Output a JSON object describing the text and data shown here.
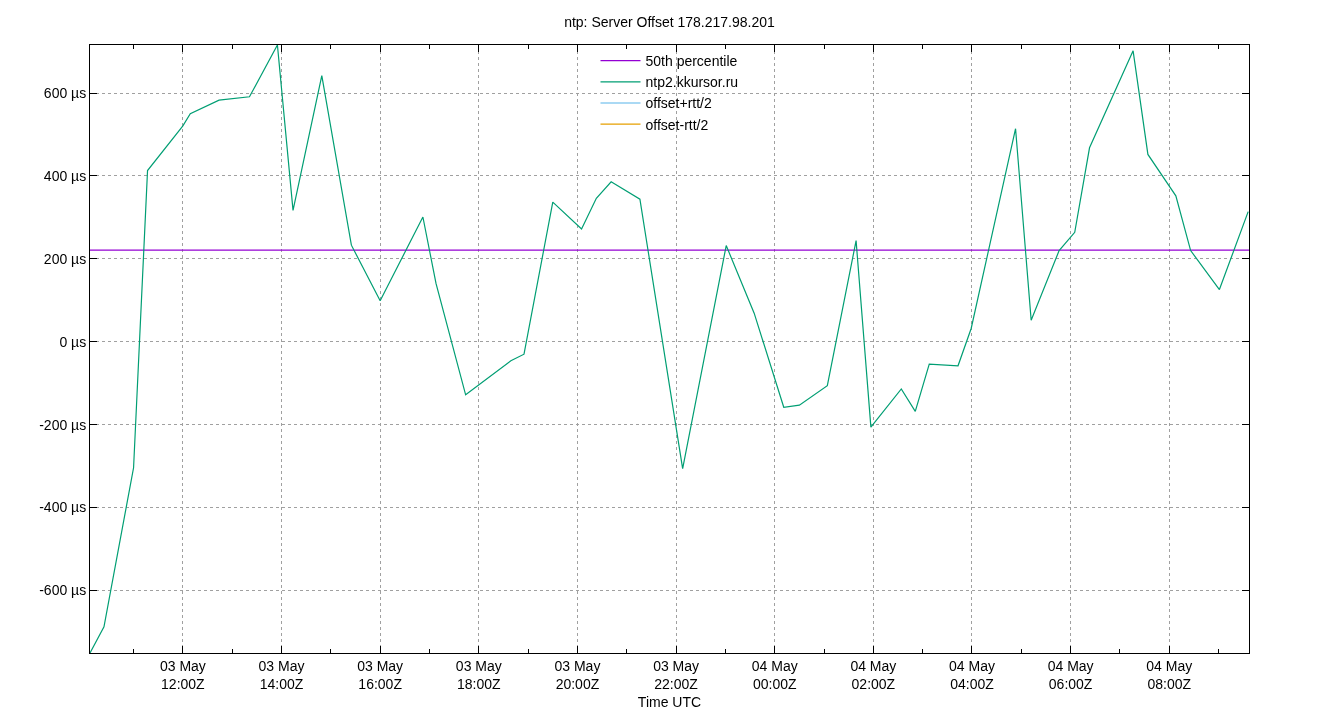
{
  "chart_data": {
    "type": "line",
    "title": "ntp: Server Offset 178.217.98.201",
    "xlabel": "Time UTC",
    "x": [
      "--05-03T10:07",
      "--05-03T10:24",
      "--05-03T11:00",
      "--05-03T11:17",
      "--05-03T12:00",
      "--05-03T12:09",
      "--05-03T12:44",
      "--05-03T13:21",
      "--05-03T13:55",
      "--05-03T14:14",
      "--05-03T14:49",
      "--05-03T15:25",
      "--05-03T16:00",
      "--05-03T16:52",
      "--05-03T17:08",
      "--05-03T17:44",
      "--05-03T18:39",
      "--05-03T18:55",
      "--05-03T19:30",
      "--05-03T20:05",
      "--05-03T20:23",
      "--05-03T20:41",
      "--05-03T21:16",
      "--05-03T22:08",
      "--05-03T23:01",
      "--05-03T23:35",
      "--05-04T00:11",
      "--05-04T00:30",
      "--05-04T01:04",
      "--05-04T01:39",
      "--05-04T01:57",
      "--05-04T02:34",
      "--05-04T02:51",
      "--05-04T03:08",
      "--05-04T03:43",
      "--05-04T03:59",
      "--05-04T04:53",
      "--05-04T05:12",
      "--05-04T05:46",
      "--05-04T06:05",
      "--05-04T06:23",
      "--05-04T07:16",
      "--05-04T07:34",
      "--05-04T08:08",
      "--05-04T08:26",
      "--05-04T09:01",
      "--05-04T09:36"
    ],
    "series": [
      {
        "name": "50th percentile",
        "color": "#9400d3",
        "x": [
          "--05-03T10:07",
          "--05-04T09:37"
        ],
        "values": [
          221,
          221
        ]
      },
      {
        "name": "ntp2.kkursor.ru",
        "color": "#009e73",
        "values": [
          -751,
          -688,
          -304,
          413,
          521,
          550,
          583,
          591,
          716,
          317,
          642,
          233,
          99,
          301,
          140,
          -128,
          -46,
          -30,
          337,
          272,
          346,
          386,
          344,
          -306,
          232,
          69,
          -158,
          -153,
          -106,
          244,
          -206,
          -114,
          -168,
          -54,
          -58,
          32,
          514,
          52,
          220,
          264,
          468,
          702,
          452,
          352,
          220,
          126,
          314
        ]
      },
      {
        "name": "offset+rtt/2",
        "color": "#56b4e9",
        "values": [
          null,
          null,
          null,
          null,
          null,
          null,
          null,
          null,
          null,
          null,
          null,
          null,
          null,
          null,
          null,
          null,
          null,
          null,
          null,
          null,
          null,
          null,
          null,
          null,
          null,
          null,
          null,
          null,
          null,
          null,
          null,
          null,
          null,
          null,
          null,
          null,
          null,
          null,
          null,
          null,
          null,
          null,
          null,
          null,
          null,
          null,
          null
        ]
      },
      {
        "name": "offset-rtt/2",
        "color": "#e69f00",
        "values": [
          null,
          null,
          null,
          null,
          null,
          null,
          null,
          null,
          null,
          null,
          null,
          null,
          null,
          null,
          null,
          null,
          null,
          null,
          null,
          null,
          null,
          null,
          null,
          null,
          null,
          null,
          null,
          null,
          null,
          null,
          null,
          null,
          null,
          null,
          null,
          null,
          null,
          null,
          null,
          null,
          null,
          null,
          null,
          null,
          null,
          null,
          null
        ]
      }
    ],
    "xlim": [
      "--05-03T10:07",
      "--05-04T09:37"
    ],
    "xticks": [
      {
        "value": "--05-03T11:00",
        "label": null
      },
      {
        "value": "--05-03T12:00",
        "label": "03 May\n12:00Z"
      },
      {
        "value": "--05-03T13:00",
        "label": null
      },
      {
        "value": "--05-03T14:00",
        "label": "03 May\n14:00Z"
      },
      {
        "value": "--05-03T15:00",
        "label": null
      },
      {
        "value": "--05-03T16:00",
        "label": "03 May\n16:00Z"
      },
      {
        "value": "--05-03T17:00",
        "label": null
      },
      {
        "value": "--05-03T18:00",
        "label": "03 May\n18:00Z"
      },
      {
        "value": "--05-03T19:00",
        "label": null
      },
      {
        "value": "--05-03T20:00",
        "label": "03 May\n20:00Z"
      },
      {
        "value": "--05-03T21:00",
        "label": null
      },
      {
        "value": "--05-03T22:00",
        "label": "03 May\n22:00Z"
      },
      {
        "value": "--05-03T23:00",
        "label": null
      },
      {
        "value": "--05-04T00:00",
        "label": "04 May\n00:00Z"
      },
      {
        "value": "--05-04T01:00",
        "label": null
      },
      {
        "value": "--05-04T02:00",
        "label": "04 May\n02:00Z"
      },
      {
        "value": "--05-04T03:00",
        "label": null
      },
      {
        "value": "--05-04T04:00",
        "label": "04 May\n04:00Z"
      },
      {
        "value": "--05-04T05:00",
        "label": null
      },
      {
        "value": "--05-04T06:00",
        "label": "04 May\n06:00Z"
      },
      {
        "value": "--05-04T07:00",
        "label": null
      },
      {
        "value": "--05-04T08:00",
        "label": "04 May\n08:00Z"
      },
      {
        "value": "--05-04T09:00",
        "label": null
      }
    ],
    "ylim": [
      -751,
      716
    ],
    "yticks": [
      {
        "value": -600,
        "label": "-600 µs"
      },
      {
        "value": -400,
        "label": "-400 µs"
      },
      {
        "value": -200,
        "label": "-200 µs"
      },
      {
        "value": 0,
        "label": "0 µs"
      },
      {
        "value": 200,
        "label": "200 µs"
      },
      {
        "value": 400,
        "label": "400 µs"
      },
      {
        "value": 600,
        "label": "600 µs"
      }
    ],
    "grid": true,
    "legend": "top",
    "line_style": "solid"
  }
}
